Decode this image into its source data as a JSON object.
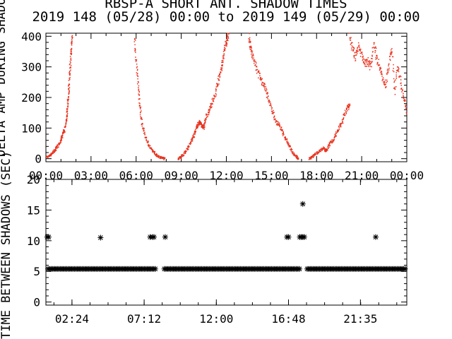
{
  "title_line1": "RBSP-A SHORT ANT. SHADOW TIMES",
  "title_line2": "2019 148 (05/28) 00:00 to 2019 149 (05/29) 00:00",
  "colors": {
    "points": "#e8321e",
    "axes": "#000000"
  },
  "chart_data": [
    {
      "type": "scatter",
      "title": "RBSP-A SHORT ANT. SHADOW TIMES",
      "xlabel": "",
      "ylabel": "DELTA AMP DURING SHADOW",
      "ylim": [
        -10,
        410
      ],
      "yticks": [
        "0",
        "100",
        "200",
        "300",
        "400"
      ],
      "xlim": [
        0,
        24
      ],
      "xticks": [
        "00:00",
        "03:00",
        "06:00",
        "09:00",
        "12:00",
        "15:00",
        "18:00",
        "21:00",
        "00:00"
      ],
      "marker": "dot",
      "series": [
        {
          "x": [
            0.0,
            0.2,
            0.35,
            0.5,
            0.65,
            0.8,
            0.95,
            1.05,
            1.15,
            1.25,
            1.35,
            1.4,
            1.45,
            1.5,
            1.55,
            1.6,
            1.65,
            1.7,
            1.75
          ],
          "y": [
            5,
            8,
            15,
            22,
            30,
            42,
            55,
            70,
            85,
            95,
            120,
            150,
            180,
            215,
            250,
            290,
            330,
            370,
            400
          ]
        },
        {
          "x": [
            5.9,
            6.0,
            6.1,
            6.2,
            6.3,
            6.4,
            6.6,
            6.8,
            7.0,
            7.2,
            7.4,
            7.6,
            7.8,
            7.9
          ],
          "y": [
            400,
            320,
            260,
            200,
            150,
            110,
            75,
            50,
            30,
            20,
            10,
            5,
            2,
            0
          ]
        },
        {
          "x": [
            8.8,
            8.9,
            9.1,
            9.3,
            9.5,
            9.7,
            9.85,
            10.0,
            10.1,
            10.2,
            10.3,
            10.4,
            10.5,
            10.6,
            10.8,
            11.0,
            11.2,
            11.4,
            11.55,
            11.7,
            11.8,
            11.9,
            12.0,
            12.1,
            12.2
          ],
          "y": [
            0,
            3,
            12,
            25,
            40,
            60,
            75,
            100,
            110,
            120,
            115,
            105,
            100,
            130,
            150,
            175,
            200,
            240,
            270,
            300,
            330,
            360,
            380,
            400,
            410
          ]
        },
        {
          "x": [
            13.5,
            13.6,
            13.7,
            13.9,
            14.1,
            14.3,
            14.5,
            14.7,
            14.9,
            15.1,
            15.3,
            15.5,
            15.7,
            15.9,
            16.1,
            16.3,
            16.5,
            16.7,
            16.8
          ],
          "y": [
            400,
            370,
            340,
            310,
            280,
            260,
            240,
            210,
            180,
            150,
            120,
            110,
            90,
            70,
            50,
            30,
            15,
            5,
            0
          ]
        },
        {
          "x": [
            17.5,
            17.7,
            17.9,
            18.1,
            18.3,
            18.5,
            18.6,
            18.7,
            18.9,
            19.1,
            19.3,
            19.5,
            19.7,
            19.9,
            20.1,
            20.2
          ],
          "y": [
            0,
            5,
            15,
            20,
            30,
            35,
            25,
            30,
            50,
            60,
            80,
            100,
            120,
            150,
            170,
            180
          ]
        },
        {
          "x": [
            20.2,
            20.4,
            20.6,
            20.8,
            21.0,
            21.2,
            21.4,
            21.6,
            21.8,
            22.0,
            22.2,
            22.4,
            22.6,
            22.8,
            23.0,
            23.2,
            23.4,
            23.6,
            23.8,
            24.0
          ],
          "y": [
            400,
            360,
            330,
            370,
            340,
            310,
            320,
            300,
            380,
            330,
            300,
            260,
            240,
            300,
            360,
            220,
            300,
            250,
            200,
            150
          ]
        }
      ]
    },
    {
      "type": "scatter",
      "title": "",
      "xlabel": "",
      "ylabel": "TIME BETWEEN SHADOWS (SEC)",
      "ylim": [
        -0.5,
        20
      ],
      "yticks": [
        "0",
        "5",
        "10",
        "15",
        "20"
      ],
      "xlim": [
        0.6667,
        24.6667
      ],
      "xticks": [
        "02:24",
        "07:12",
        "12:00",
        "16:48",
        "21:35"
      ],
      "xtick_values": [
        2.4,
        7.2,
        12.0,
        16.8,
        21.5833
      ],
      "marker": "asterisk",
      "baseline": {
        "value": 5.4,
        "ranges": [
          [
            0.67,
            8.0
          ],
          [
            8.4,
            17.6
          ],
          [
            17.9,
            24.67
          ]
        ]
      },
      "series": [
        {
          "name": "",
          "x": [
            0.75,
            0.85,
            4.3,
            7.6,
            7.75,
            7.85,
            8.6,
            16.7,
            16.8,
            17.55,
            17.65,
            17.75,
            17.85,
            17.75,
            22.6
          ],
          "y": [
            10.6,
            10.6,
            10.5,
            10.6,
            10.6,
            10.6,
            10.6,
            10.6,
            10.6,
            10.6,
            10.6,
            10.6,
            10.6,
            16.0,
            10.6
          ]
        }
      ]
    }
  ]
}
